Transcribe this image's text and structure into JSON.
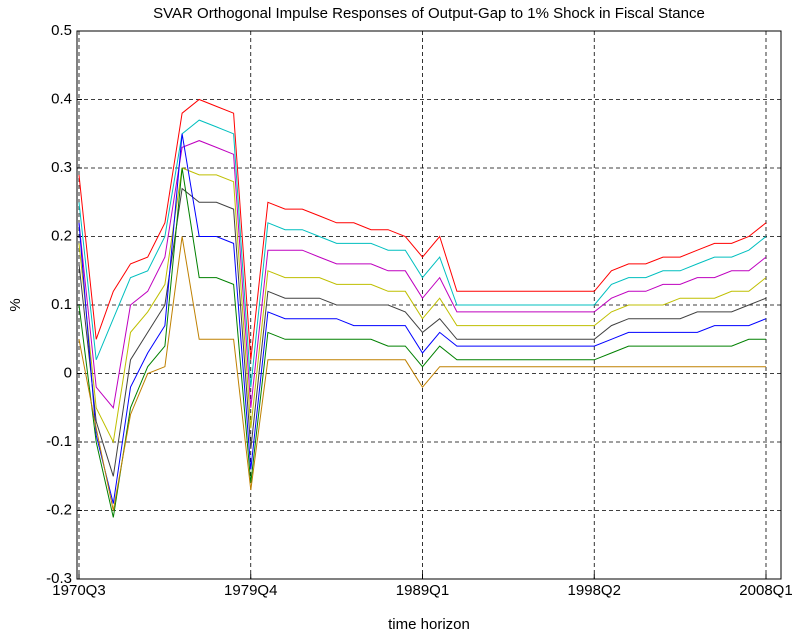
{
  "chart_data": {
    "type": "line",
    "title": "SVAR Orthogonal Impulse Responses of Output-Gap to 1% Shock in Fiscal Stance",
    "x_label": "time horizon",
    "y_label": "%",
    "categories": [
      "1970Q3",
      null,
      null,
      null,
      null,
      null,
      null,
      null,
      null,
      null,
      "1979Q4",
      null,
      null,
      null,
      null,
      null,
      null,
      null,
      null,
      null,
      "1989Q1",
      null,
      null,
      null,
      null,
      null,
      null,
      null,
      null,
      null,
      "1998Q2",
      null,
      null,
      null,
      null,
      null,
      null,
      null,
      null,
      null,
      "2008Q1"
    ],
    "ylim": [
      -0.3,
      0.5
    ],
    "yticks": [
      -0.3,
      -0.2,
      -0.1,
      0,
      0.1,
      0.2,
      0.3,
      0.4,
      0.5
    ],
    "grid": true,
    "series": [
      {
        "color": "#ff0000",
        "values": [
          0.29,
          0.05,
          0.12,
          0.16,
          0.17,
          0.22,
          0.38,
          0.4,
          0.39,
          0.38,
          0.02,
          0.25,
          0.24,
          0.24,
          0.23,
          0.22,
          0.22,
          0.21,
          0.21,
          0.2,
          0.17,
          0.2,
          0.12,
          0.12,
          0.12,
          0.12,
          0.12,
          0.12,
          0.12,
          0.12,
          0.12,
          0.15,
          0.16,
          0.16,
          0.17,
          0.17,
          0.18,
          0.19,
          0.19,
          0.2,
          0.22
        ]
      },
      {
        "color": "#00bfbf",
        "values": [
          0.25,
          0.02,
          0.08,
          0.14,
          0.15,
          0.2,
          0.35,
          0.37,
          0.36,
          0.35,
          -0.02,
          0.22,
          0.21,
          0.21,
          0.2,
          0.19,
          0.19,
          0.19,
          0.18,
          0.18,
          0.14,
          0.17,
          0.1,
          0.1,
          0.1,
          0.1,
          0.1,
          0.1,
          0.1,
          0.1,
          0.1,
          0.13,
          0.14,
          0.14,
          0.15,
          0.15,
          0.16,
          0.17,
          0.17,
          0.18,
          0.2
        ]
      },
      {
        "color": "#bf00bf",
        "values": [
          0.22,
          -0.02,
          -0.05,
          0.1,
          0.12,
          0.17,
          0.33,
          0.34,
          0.33,
          0.32,
          -0.05,
          0.18,
          0.18,
          0.18,
          0.17,
          0.16,
          0.16,
          0.16,
          0.15,
          0.15,
          0.11,
          0.14,
          0.09,
          0.09,
          0.09,
          0.09,
          0.09,
          0.09,
          0.09,
          0.09,
          0.09,
          0.11,
          0.12,
          0.12,
          0.13,
          0.13,
          0.14,
          0.14,
          0.15,
          0.15,
          0.17
        ]
      },
      {
        "color": "#bfbf00",
        "values": [
          0.19,
          -0.05,
          -0.1,
          0.06,
          0.09,
          0.13,
          0.3,
          0.29,
          0.29,
          0.28,
          -0.08,
          0.15,
          0.14,
          0.14,
          0.14,
          0.13,
          0.13,
          0.13,
          0.12,
          0.12,
          0.08,
          0.11,
          0.07,
          0.07,
          0.07,
          0.07,
          0.07,
          0.07,
          0.07,
          0.07,
          0.07,
          0.09,
          0.1,
          0.1,
          0.1,
          0.11,
          0.11,
          0.11,
          0.12,
          0.12,
          0.14
        ]
      },
      {
        "color": "#404040",
        "values": [
          0.16,
          -0.07,
          -0.15,
          0.02,
          0.06,
          0.1,
          0.27,
          0.25,
          0.25,
          0.24,
          -0.11,
          0.12,
          0.11,
          0.11,
          0.11,
          0.1,
          0.1,
          0.1,
          0.1,
          0.09,
          0.06,
          0.08,
          0.05,
          0.05,
          0.05,
          0.05,
          0.05,
          0.05,
          0.05,
          0.05,
          0.05,
          0.07,
          0.08,
          0.08,
          0.08,
          0.08,
          0.09,
          0.09,
          0.09,
          0.1,
          0.11
        ]
      },
      {
        "color": "#0000ff",
        "values": [
          0.22,
          -0.09,
          -0.19,
          -0.02,
          0.03,
          0.07,
          0.35,
          0.2,
          0.2,
          0.19,
          -0.14,
          0.09,
          0.08,
          0.08,
          0.08,
          0.08,
          0.07,
          0.07,
          0.07,
          0.07,
          0.03,
          0.06,
          0.04,
          0.04,
          0.04,
          0.04,
          0.04,
          0.04,
          0.04,
          0.04,
          0.04,
          0.05,
          0.06,
          0.06,
          0.06,
          0.06,
          0.06,
          0.07,
          0.07,
          0.07,
          0.08
        ]
      },
      {
        "color": "#008000",
        "values": [
          0.1,
          -0.1,
          -0.21,
          -0.05,
          0.01,
          0.04,
          0.3,
          0.14,
          0.14,
          0.13,
          -0.16,
          0.06,
          0.05,
          0.05,
          0.05,
          0.05,
          0.05,
          0.05,
          0.04,
          0.04,
          0.01,
          0.04,
          0.02,
          0.02,
          0.02,
          0.02,
          0.02,
          0.02,
          0.02,
          0.02,
          0.02,
          0.03,
          0.04,
          0.04,
          0.04,
          0.04,
          0.04,
          0.04,
          0.04,
          0.05,
          0.05
        ]
      },
      {
        "color": "#bf8000",
        "values": [
          0.05,
          -0.08,
          -0.2,
          -0.06,
          0.0,
          0.01,
          0.2,
          0.05,
          0.05,
          0.05,
          -0.17,
          0.02,
          0.02,
          0.02,
          0.02,
          0.02,
          0.02,
          0.02,
          0.02,
          0.02,
          -0.02,
          0.01,
          0.01,
          0.01,
          0.01,
          0.01,
          0.01,
          0.01,
          0.01,
          0.01,
          0.01,
          0.01,
          0.01,
          0.01,
          0.01,
          0.01,
          0.01,
          0.01,
          0.01,
          0.01,
          0.01
        ]
      }
    ]
  }
}
